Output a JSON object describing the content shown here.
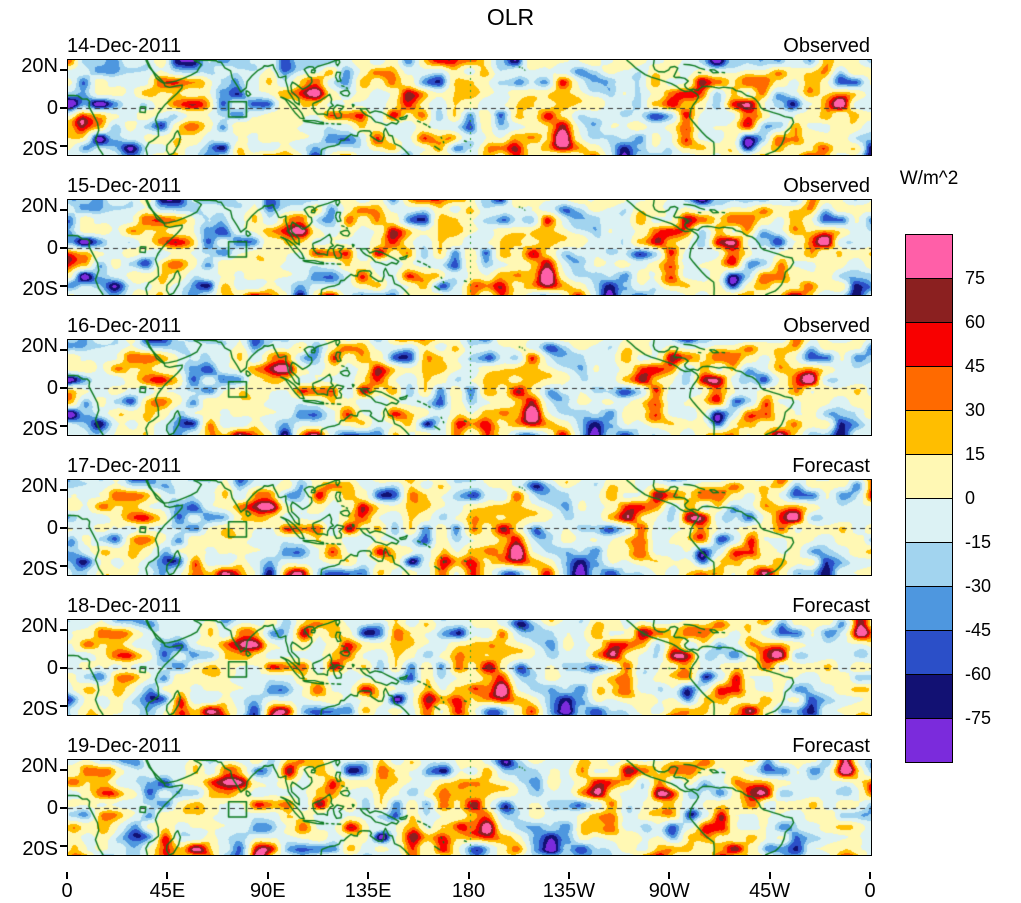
{
  "title": "OLR",
  "colorbar": {
    "units_label": "W/m^2",
    "tick_labels": [
      "75",
      "60",
      "45",
      "30",
      "15",
      "0",
      "-15",
      "-30",
      "-45",
      "-60",
      "-75"
    ],
    "colors_top_to_bottom": [
      "#FF5FA8",
      "#8B2020",
      "#F80000",
      "#FF6A00",
      "#FFBE00",
      "#FFF8B4",
      "#DCF2F4",
      "#A2D4EF",
      "#4E97DF",
      "#2B4FC8",
      "#121173",
      "#7B2BDC"
    ]
  },
  "panels": [
    {
      "date": "14-Dec-2011",
      "label": "Observed"
    },
    {
      "date": "15-Dec-2011",
      "label": "Observed"
    },
    {
      "date": "16-Dec-2011",
      "label": "Observed"
    },
    {
      "date": "17-Dec-2011",
      "label": "Forecast"
    },
    {
      "date": "18-Dec-2011",
      "label": "Forecast"
    },
    {
      "date": "19-Dec-2011",
      "label": "Forecast"
    }
  ],
  "x_axis": {
    "tick_labels": [
      "0",
      "45E",
      "90E",
      "135E",
      "180",
      "135W",
      "90W",
      "45W",
      "0"
    ]
  },
  "y_axis": {
    "tick_labels": [
      "20N",
      "0",
      "20S"
    ]
  },
  "chart_data": {
    "type": "heatmap",
    "title": "OLR",
    "subtitle": "",
    "panel_layout": "6 stacked tropical longitude-latitude filled-contour anomaly maps",
    "panels": [
      {
        "date": "14-Dec-2011",
        "source": "Observed"
      },
      {
        "date": "15-Dec-2011",
        "source": "Observed"
      },
      {
        "date": "16-Dec-2011",
        "source": "Observed"
      },
      {
        "date": "17-Dec-2011",
        "source": "Forecast"
      },
      {
        "date": "18-Dec-2011",
        "source": "Forecast"
      },
      {
        "date": "19-Dec-2011",
        "source": "Forecast"
      }
    ],
    "x_tick_labels": [
      "0",
      "45E",
      "90E",
      "135E",
      "180",
      "135W",
      "90W",
      "45W",
      "0"
    ],
    "y_tick_labels": [
      "20N",
      "0",
      "20S"
    ],
    "lat_range_deg": [
      -25,
      25
    ],
    "lon_range": "0E eastward around the globe back to 0",
    "units": "W/m^2",
    "colorbar_levels_w_m2": [
      -75,
      -60,
      -45,
      -30,
      -15,
      0,
      15,
      30,
      45,
      60,
      75
    ],
    "colorbar_colors_low_to_high": [
      "#7B2BDC",
      "#121173",
      "#2B4FC8",
      "#4E97DF",
      "#A2D4EF",
      "#DCF2F4",
      "#FFF8B4",
      "#FFBE00",
      "#FF6A00",
      "#F80000",
      "#8B2020",
      "#FF5FA8"
    ],
    "legend_position": "right",
    "grid": false,
    "features": {
      "equator_dashed_line": true,
      "dateline_dashed_line_at_180": true,
      "green_coastlines": true,
      "target_region_box": {
        "lon_e": [
          72,
          80
        ],
        "lat": [
          -5,
          3
        ]
      }
    }
  }
}
